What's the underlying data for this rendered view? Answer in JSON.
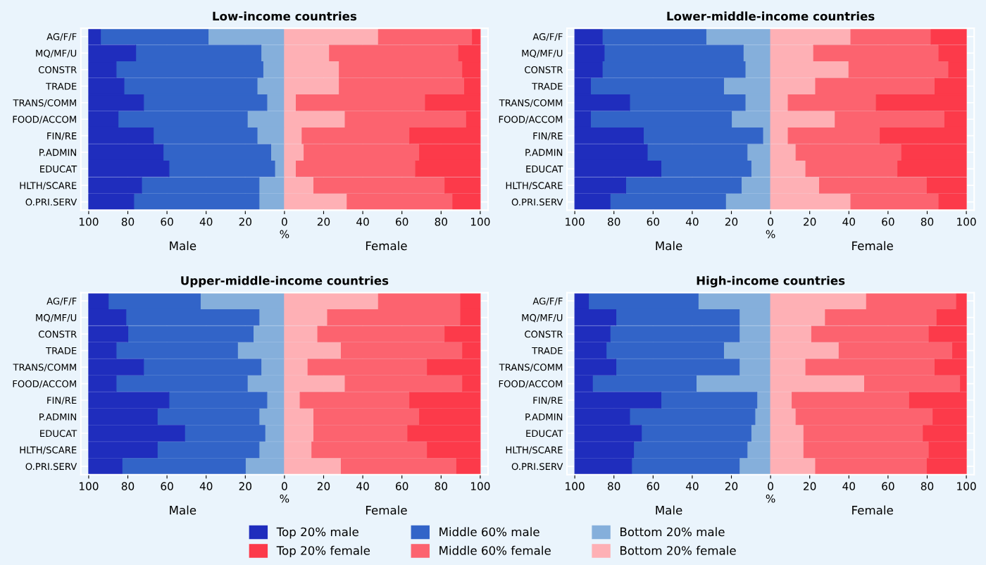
{
  "chart_data": [
    {
      "type": "bar",
      "orientation": "horizontal",
      "stacked": true,
      "title": "Low-income countries",
      "xlabel": "%",
      "annotations": [
        "Male",
        "Female"
      ],
      "categories": [
        "AG/F/F",
        "MQ/MF/U",
        "CONSTR",
        "TRADE",
        "TRANS/COMM",
        "FOOD/ACCOM",
        "FIN/RE",
        "P.ADMIN",
        "EDUCAT",
        "HLTH/SCARE",
        "O.PRI.SERV"
      ],
      "xlim": [
        -104,
        104
      ],
      "xticks": [
        {
          "value": -100,
          "label": "100"
        },
        {
          "value": -80,
          "label": "80"
        },
        {
          "value": -60,
          "label": "60"
        },
        {
          "value": -40,
          "label": "40"
        },
        {
          "value": -20,
          "label": "20"
        },
        0,
        20,
        40,
        60,
        80,
        100
      ],
      "grid": true,
      "legend": "bottom",
      "series": [
        {
          "name": "Bottom 20% male",
          "color": "#85afdb",
          "values": [
            -39,
            -12,
            -11,
            -14,
            -9,
            -19,
            -14,
            -7,
            -5,
            -13,
            -13
          ]
        },
        {
          "name": "Middle 60% male",
          "color": "#3264c8",
          "values": [
            -55,
            -64,
            -75,
            -68,
            -63,
            -66,
            -53,
            -55,
            -54,
            -60,
            -64
          ]
        },
        {
          "name": "Top 20% male",
          "color": "#1f2dbd",
          "values": [
            -6,
            -24,
            -14,
            -18,
            -28,
            -15,
            -33,
            -38,
            -41,
            -27,
            -23
          ]
        },
        {
          "name": "Bottom 20% female",
          "color": "#feb0b5",
          "values": [
            48,
            23,
            28,
            28,
            6,
            31,
            9,
            10,
            6,
            15,
            32
          ]
        },
        {
          "name": "Middle 60% female",
          "color": "#fc636f",
          "values": [
            48,
            66,
            63,
            64,
            66,
            62,
            55,
            59,
            61,
            67,
            54
          ]
        },
        {
          "name": "Top 20% female",
          "color": "#fc3a4a",
          "values": [
            4,
            11,
            9,
            8,
            28,
            7,
            36,
            31,
            33,
            18,
            14
          ]
        }
      ]
    },
    {
      "type": "bar",
      "orientation": "horizontal",
      "stacked": true,
      "title": "Lower-middle-income countries",
      "xlabel": "%",
      "annotations": [
        "Male",
        "Female"
      ],
      "categories": [
        "AG/F/F",
        "MQ/MF/U",
        "CONSTR",
        "TRADE",
        "TRANS/COMM",
        "FOOD/ACCOM",
        "FIN/RE",
        "P.ADMIN",
        "EDUCAT",
        "HLTH/SCARE",
        "O.PRI.SERV"
      ],
      "xlim": [
        -104,
        104
      ],
      "xticks": [
        {
          "value": -100,
          "label": "100"
        },
        {
          "value": -80,
          "label": "80"
        },
        {
          "value": -60,
          "label": "60"
        },
        {
          "value": -40,
          "label": "40"
        },
        {
          "value": -20,
          "label": "20"
        },
        0,
        20,
        40,
        60,
        80,
        100
      ],
      "grid": true,
      "series": [
        {
          "color": "#85afdb",
          "values": [
            -33,
            -14,
            -13,
            -24,
            -13,
            -20,
            -4,
            -12,
            -10,
            -15,
            -23
          ]
        },
        {
          "color": "#3264c8",
          "values": [
            -53,
            -71,
            -73,
            -68,
            -59,
            -72,
            -61,
            -51,
            -46,
            -59,
            -59
          ]
        },
        {
          "color": "#1f2dbd",
          "values": [
            -14,
            -15,
            -14,
            -8,
            -28,
            -8,
            -35,
            -37,
            -44,
            -26,
            -18
          ]
        },
        {
          "color": "#feb0b5",
          "values": [
            41,
            22,
            40,
            23,
            9,
            33,
            9,
            13,
            18,
            25,
            41
          ]
        },
        {
          "color": "#fc636f",
          "values": [
            41,
            64,
            51,
            61,
            45,
            56,
            47,
            54,
            47,
            55,
            45
          ]
        },
        {
          "color": "#fc3a4a",
          "values": [
            18,
            14,
            9,
            16,
            46,
            11,
            44,
            33,
            35,
            20,
            14
          ]
        }
      ]
    },
    {
      "type": "bar",
      "orientation": "horizontal",
      "stacked": true,
      "title": "Upper-middle-income countries",
      "xlabel": "%",
      "annotations": [
        "Male",
        "Female"
      ],
      "categories": [
        "AG/F/F",
        "MQ/MF/U",
        "CONSTR",
        "TRADE",
        "TRANS/COMM",
        "FOOD/ACCOM",
        "FIN/RE",
        "P.ADMIN",
        "EDUCAT",
        "HLTH/SCARE",
        "O.PRI.SERV"
      ],
      "xlim": [
        -104,
        104
      ],
      "xticks": [
        {
          "value": -100,
          "label": "100"
        },
        {
          "value": -80,
          "label": "80"
        },
        {
          "value": -60,
          "label": "60"
        },
        {
          "value": -40,
          "label": "40"
        },
        {
          "value": -20,
          "label": "20"
        },
        0,
        20,
        40,
        60,
        80,
        100
      ],
      "grid": true,
      "series": [
        {
          "color": "#85afdb",
          "values": [
            -43,
            -13,
            -16,
            -24,
            -12,
            -19,
            -9,
            -13,
            -10,
            -13,
            -20
          ]
        },
        {
          "color": "#3264c8",
          "values": [
            -47,
            -68,
            -64,
            -62,
            -60,
            -67,
            -50,
            -52,
            -41,
            -52,
            -63
          ]
        },
        {
          "color": "#1f2dbd",
          "values": [
            -10,
            -19,
            -20,
            -14,
            -28,
            -14,
            -41,
            -35,
            -49,
            -35,
            -17
          ]
        },
        {
          "color": "#feb0b5",
          "values": [
            48,
            22,
            17,
            29,
            12,
            31,
            8,
            15,
            15,
            14,
            29
          ]
        },
        {
          "color": "#fc636f",
          "values": [
            42,
            68,
            65,
            62,
            61,
            60,
            56,
            54,
            48,
            59,
            59
          ]
        },
        {
          "color": "#fc3a4a",
          "values": [
            10,
            10,
            18,
            9,
            27,
            9,
            36,
            31,
            37,
            27,
            12
          ]
        }
      ]
    },
    {
      "type": "bar",
      "orientation": "horizontal",
      "stacked": true,
      "title": "High-income countries",
      "xlabel": "%",
      "annotations": [
        "Male",
        "Female"
      ],
      "categories": [
        "AG/F/F",
        "MQ/MF/U",
        "CONSTR",
        "TRADE",
        "TRANS/COMM",
        "FOOD/ACCOM",
        "FIN/RE",
        "P.ADMIN",
        "EDUCAT",
        "HLTH/SCARE",
        "O.PRI.SERV"
      ],
      "xlim": [
        -104,
        104
      ],
      "xticks": [
        {
          "value": -100,
          "label": "100"
        },
        {
          "value": -80,
          "label": "80"
        },
        {
          "value": -60,
          "label": "60"
        },
        {
          "value": -40,
          "label": "40"
        },
        {
          "value": -20,
          "label": "20"
        },
        0,
        20,
        40,
        60,
        80,
        100
      ],
      "grid": true,
      "series": [
        {
          "color": "#85afdb",
          "values": [
            -37,
            -16,
            -16,
            -24,
            -16,
            -38,
            -7,
            -8,
            -10,
            -12,
            -16
          ]
        },
        {
          "color": "#3264c8",
          "values": [
            -56,
            -63,
            -66,
            -60,
            -63,
            -53,
            -49,
            -64,
            -56,
            -58,
            -55
          ]
        },
        {
          "color": "#1f2dbd",
          "values": [
            -7,
            -21,
            -18,
            -16,
            -21,
            -9,
            -44,
            -28,
            -34,
            -30,
            -29
          ]
        },
        {
          "color": "#feb0b5",
          "values": [
            49,
            28,
            21,
            35,
            18,
            48,
            11,
            13,
            17,
            17,
            23
          ]
        },
        {
          "color": "#fc636f",
          "values": [
            46,
            57,
            60,
            58,
            66,
            49,
            60,
            70,
            61,
            64,
            57
          ]
        },
        {
          "color": "#fc3a4a",
          "values": [
            5,
            15,
            19,
            7,
            16,
            3,
            29,
            17,
            22,
            19,
            20
          ]
        }
      ]
    }
  ]
}
